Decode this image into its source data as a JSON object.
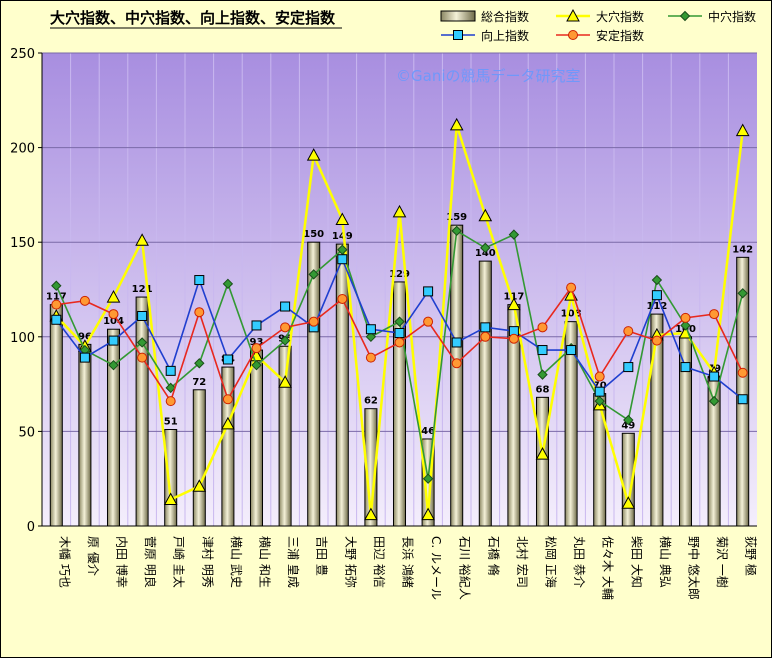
{
  "chart_data": {
    "type": "bar",
    "title": "大穴指数、中穴指数、向上指数、安定指数",
    "watermark": "©Ganiの競馬データ研究室",
    "ylim": [
      0,
      250
    ],
    "yticks": [
      0,
      50,
      100,
      150,
      200,
      250
    ],
    "categories": [
      "木幡 巧也",
      "原 優介",
      "内田 博幸",
      "菅原 明良",
      "戸崎 圭太",
      "津村 明秀",
      "横山 武史",
      "横山 和生",
      "三浦 皇成",
      "吉田 豊",
      "大野 拓弥",
      "田辺 裕信",
      "長浜 鴻緒",
      "C. ルメール",
      "石川 裕紀人",
      "石橋 脩",
      "北村 宏司",
      "松岡 正海",
      "丸田 恭介",
      "佐々木 大輔",
      "柴田 大知",
      "横山 典弘",
      "野中 悠太郎",
      "菊沢 一樹",
      "荻野 極"
    ],
    "series": [
      {
        "name": "総合指数",
        "type": "bar",
        "color": "#c8c49a",
        "values": [
          117,
          96,
          104,
          121,
          51,
          72,
          84,
          93,
          95,
          150,
          149,
          62,
          129,
          46,
          159,
          140,
          117,
          68,
          108,
          70,
          49,
          112,
          100,
          79,
          142
        ]
      },
      {
        "name": "大穴指数",
        "type": "line",
        "color": "#ffff00",
        "marker": "triangle",
        "values": [
          111,
          95,
          121,
          151,
          14,
          21,
          54,
          90,
          76,
          196,
          162,
          6,
          166,
          6,
          212,
          164,
          117,
          38,
          122,
          64,
          12,
          101,
          102,
          81,
          209
        ]
      },
      {
        "name": "中穴指数",
        "type": "line",
        "color": "#339933",
        "marker": "diamond",
        "values": [
          127,
          93,
          85,
          97,
          73,
          86,
          128,
          85,
          98,
          133,
          146,
          100,
          108,
          25,
          156,
          147,
          154,
          80,
          94,
          66,
          56,
          130,
          106,
          66,
          123
        ]
      },
      {
        "name": "向上指数",
        "type": "line",
        "color": "#1f3fcf",
        "marker": "square",
        "values": [
          109,
          89,
          98,
          111,
          82,
          130,
          88,
          106,
          116,
          105,
          141,
          104,
          102,
          124,
          97,
          105,
          103,
          93,
          93,
          71,
          84,
          122,
          84,
          79,
          67
        ]
      },
      {
        "name": "安定指数",
        "type": "line",
        "color": "#e8281e",
        "marker": "circle",
        "values": [
          117,
          119,
          112,
          89,
          66,
          113,
          67,
          94,
          105,
          108,
          120,
          89,
          97,
          108,
          86,
          100,
          99,
          105,
          126,
          79,
          103,
          98,
          110,
          112,
          81
        ]
      }
    ]
  }
}
